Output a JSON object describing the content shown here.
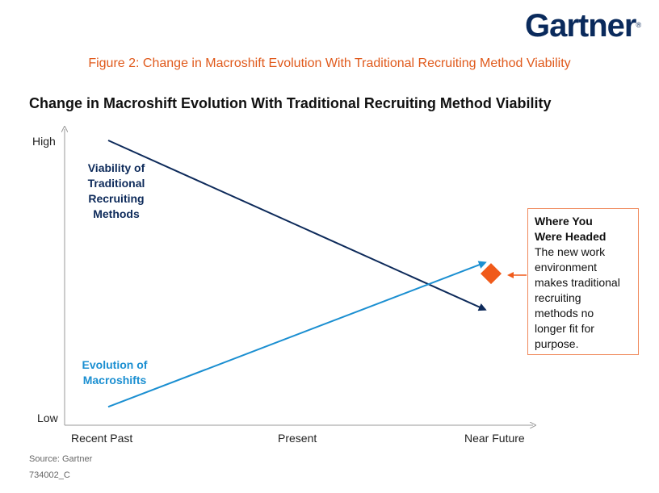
{
  "header": {
    "logo_text": "Gartner",
    "logo_mark": "®",
    "figure_title": "Figure 2: Change in Macroshift Evolution With Traditional Recruiting Method Viability",
    "chart_title": "Change in Macroshift Evolution With Traditional Recruiting Method Viability"
  },
  "chart_data": {
    "type": "line",
    "categories": [
      "Recent Past",
      "Present",
      "Near Future"
    ],
    "y_ticks": [
      "High",
      "Low"
    ],
    "ylim": [
      "Low",
      "High"
    ],
    "grid": false,
    "series": [
      {
        "name": "Viability of Traditional Recruiting Methods",
        "color": "#0d2a5a",
        "x": [
          0,
          1.97
        ],
        "y": [
          1.0,
          0.39
        ]
      },
      {
        "name": "Evolution of Macroshifts",
        "color": "#1b8fd1",
        "x": [
          0,
          1.97
        ],
        "y": [
          0.04,
          0.56
        ]
      }
    ],
    "marker": {
      "name": "Where You Were Headed",
      "shape": "diamond",
      "color": "#f05a1a",
      "x": 2.0,
      "y": 0.52
    },
    "annotation": {
      "heading": "Where You Were Headed",
      "body": "The new work environment makes traditional recruiting methods no longer fit for purpose."
    }
  },
  "series_labels": {
    "top_line1": "Viability of",
    "top_line2": "Traditional",
    "top_line3": "Recruiting",
    "top_line4": "Methods",
    "bottom_line1": "Evolution of",
    "bottom_line2": "Macroshifts"
  },
  "callout": {
    "head_line1": "Where You",
    "head_line2": "Were Headed",
    "body_lines": [
      "The new work",
      "environment",
      "makes traditional",
      "recruiting",
      "methods no",
      "longer fit for",
      "purpose."
    ]
  },
  "footer": {
    "source": "Source: Gartner",
    "id": "734002_C"
  },
  "colors": {
    "accent_orange": "#e05a1c",
    "navy": "#0d2a5a",
    "blue": "#1b8fd1"
  }
}
